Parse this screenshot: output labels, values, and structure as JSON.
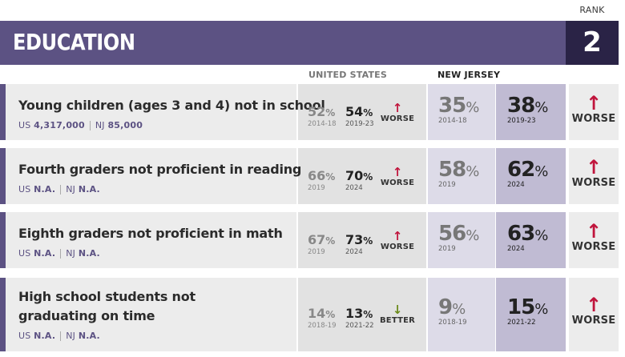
{
  "rank_label": "RANK",
  "section_title": "EDUCATION",
  "rank_value": "2",
  "col_us": "UNITED STATES",
  "col_nj": "NEW JERSEY",
  "colors": {
    "header": "#5c5283",
    "rank_box": "#2a2346",
    "worse": "#c0143c",
    "better": "#6a8a1a"
  },
  "rows": [
    {
      "title_lines": [
        "Young children (ages 3 and 4) not in school"
      ],
      "us_label": "US",
      "us_count": "4,317,000",
      "nj_label": "NJ",
      "nj_count": "85,000",
      "us_a": {
        "value": "52",
        "pct": "%",
        "year": "2014-18"
      },
      "us_b": {
        "value": "54",
        "pct": "%",
        "year": "2019-23"
      },
      "us_trend": {
        "icon": "arrow-up-icon",
        "arrow": "↑",
        "label": "WORSE"
      },
      "nj_a": {
        "value": "35",
        "pct": "%",
        "year": "2014-18"
      },
      "nj_b": {
        "value": "38",
        "pct": "%",
        "year": "2019-23"
      },
      "nj_trend": {
        "icon": "arrow-up-icon",
        "arrow": "↑",
        "label": "WORSE"
      }
    },
    {
      "title_lines": [
        "Fourth graders not proficient in reading"
      ],
      "us_label": "US",
      "us_count": "N.A.",
      "nj_label": "NJ",
      "nj_count": "N.A.",
      "us_a": {
        "value": "66",
        "pct": "%",
        "year": "2019"
      },
      "us_b": {
        "value": "70",
        "pct": "%",
        "year": "2024"
      },
      "us_trend": {
        "icon": "arrow-up-icon",
        "arrow": "↑",
        "label": "WORSE"
      },
      "nj_a": {
        "value": "58",
        "pct": "%",
        "year": "2019"
      },
      "nj_b": {
        "value": "62",
        "pct": "%",
        "year": "2024"
      },
      "nj_trend": {
        "icon": "arrow-up-icon",
        "arrow": "↑",
        "label": "WORSE"
      }
    },
    {
      "title_lines": [
        "Eighth graders not proficient in math"
      ],
      "us_label": "US",
      "us_count": "N.A.",
      "nj_label": "NJ",
      "nj_count": "N.A.",
      "us_a": {
        "value": "67",
        "pct": "%",
        "year": "2019"
      },
      "us_b": {
        "value": "73",
        "pct": "%",
        "year": "2024"
      },
      "us_trend": {
        "icon": "arrow-up-icon",
        "arrow": "↑",
        "label": "WORSE"
      },
      "nj_a": {
        "value": "56",
        "pct": "%",
        "year": "2019"
      },
      "nj_b": {
        "value": "63",
        "pct": "%",
        "year": "2024"
      },
      "nj_trend": {
        "icon": "arrow-up-icon",
        "arrow": "↑",
        "label": "WORSE"
      }
    },
    {
      "title_lines": [
        "High school students not",
        "graduating on time"
      ],
      "us_label": "US",
      "us_count": "N.A.",
      "nj_label": "NJ",
      "nj_count": "N.A.",
      "us_a": {
        "value": "14",
        "pct": "%",
        "year": "2018-19"
      },
      "us_b": {
        "value": "13",
        "pct": "%",
        "year": "2021-22"
      },
      "us_trend": {
        "icon": "arrow-down-icon",
        "arrow": "↓",
        "label": "BETTER"
      },
      "nj_a": {
        "value": "9",
        "pct": "%",
        "year": "2018-19"
      },
      "nj_b": {
        "value": "15",
        "pct": "%",
        "year": "2021-22"
      },
      "nj_trend": {
        "icon": "arrow-up-icon",
        "arrow": "↑",
        "label": "WORSE"
      }
    }
  ]
}
